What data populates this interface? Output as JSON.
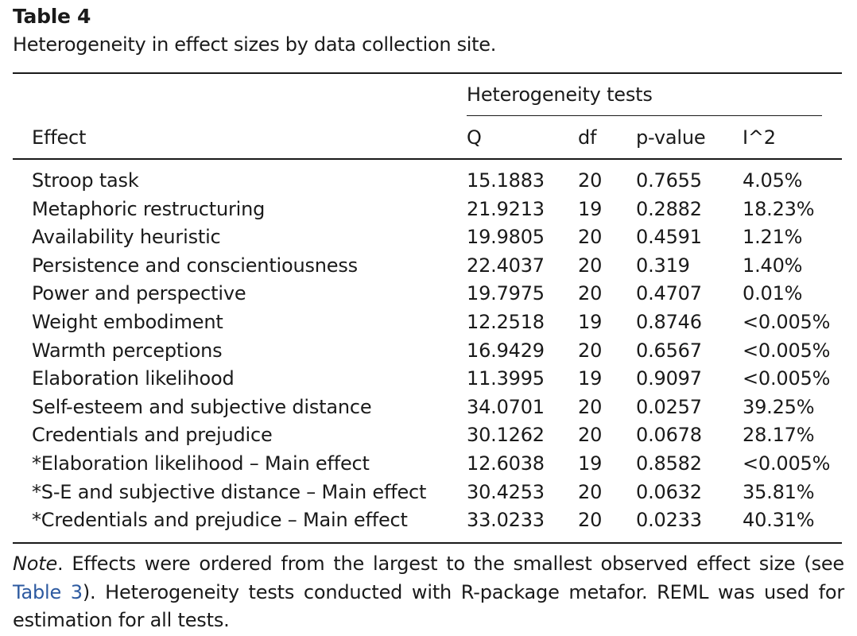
{
  "table": {
    "number": "Table 4",
    "caption": "Heterogeneity in effect sizes by data collection site.",
    "group_header": "Heterogeneity tests",
    "columns": [
      "Effect",
      "Q",
      "df",
      "p-value",
      "I^2"
    ],
    "rows": [
      [
        "Stroop task",
        "15.1883",
        "20",
        "0.7655",
        "4.05%"
      ],
      [
        "Metaphoric restructuring",
        "21.9213",
        "19",
        "0.2882",
        "18.23%"
      ],
      [
        "Availability heuristic",
        "19.9805",
        "20",
        "0.4591",
        "1.21%"
      ],
      [
        "Persistence and conscientiousness",
        "22.4037",
        "20",
        "0.319",
        "1.40%"
      ],
      [
        "Power and perspective",
        "19.7975",
        "20",
        "0.4707",
        "0.01%"
      ],
      [
        "Weight embodiment",
        "12.2518",
        "19",
        "0.8746",
        "<0.005%"
      ],
      [
        "Warmth perceptions",
        "16.9429",
        "20",
        "0.6567",
        "<0.005%"
      ],
      [
        "Elaboration likelihood",
        "11.3995",
        "19",
        "0.9097",
        "<0.005%"
      ],
      [
        "Self-esteem and subjective distance",
        "34.0701",
        "20",
        "0.0257",
        "39.25%"
      ],
      [
        "Credentials and prejudice",
        "30.1262",
        "20",
        "0.0678",
        "28.17%"
      ],
      [
        "*Elaboration likelihood – Main effect",
        "12.6038",
        "19",
        "0.8582",
        "<0.005%"
      ],
      [
        "*S-E and subjective distance – Main effect",
        "30.4253",
        "20",
        "0.0632",
        "35.81%"
      ],
      [
        "*Credentials and prejudice – Main effect",
        "33.0233",
        "20",
        "0.0233",
        "40.31%"
      ]
    ]
  },
  "note": {
    "label": "Note",
    "text_before_link": ". Effects were ordered from the largest to the smallest observed effect size (see ",
    "link_text": "Table 3",
    "text_after_link": "). Heterogeneity tests conducted with R-package metafor. REML was used for estimation for all tests."
  }
}
